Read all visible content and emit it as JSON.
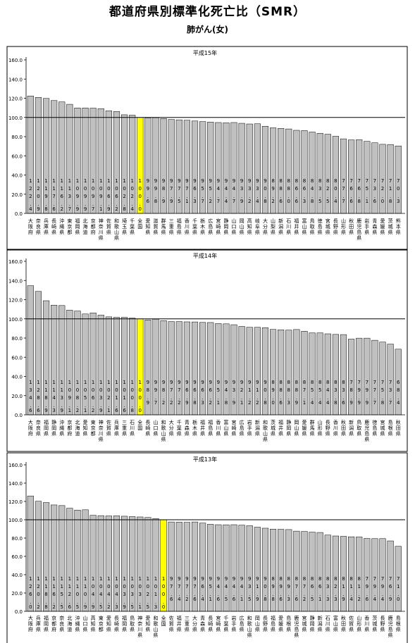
{
  "title": "都道府県別標準化死亡比（SMR）",
  "subtitle": "肺がん(女)",
  "colors": {
    "bar": "#c0c0c0",
    "highlight": "#ffff00",
    "stroke": "#000000"
  },
  "chart_data": [
    {
      "type": "bar",
      "title": "平成15年",
      "ylim": [
        0,
        160
      ],
      "yticks": [
        "0.0",
        "20.0",
        "40.0",
        "60.0",
        "80.0",
        "100.0",
        "120.0",
        "140.0",
        "160.0"
      ],
      "reference_line": 100,
      "highlight": "全国",
      "categories": [
        "大阪府",
        "奈良県",
        "兵庫県",
        "長崎県",
        "沖縄県",
        "東京都",
        "福岡県",
        "北海道",
        "京都府",
        "神奈川県",
        "佐賀県",
        "和歌山県",
        "埼玉県",
        "千葉県",
        "全国",
        "愛知県",
        "滋賀県",
        "群馬県",
        "三重県",
        "福島県",
        "香川県",
        "千葉県",
        "栃木県",
        "広島県",
        "宮崎県",
        "静岡県",
        "山口県",
        "岡山県",
        "高知県",
        "岐阜県",
        "大分県",
        "山梨県",
        "新潟県",
        "石川県",
        "福井県",
        "富山県",
        "鳥取県",
        "徳島県",
        "宮城県",
        "長野県",
        "山形県",
        "秋田県",
        "鹿児島県",
        "岩手県",
        "青森県",
        "愛媛県",
        "茨城県",
        "熊本県"
      ],
      "values": [
        122.4,
        120.9,
        119.8,
        117.6,
        116.2,
        113.7,
        109.9,
        109.9,
        109.7,
        109.1,
        106.9,
        106.2,
        102.8,
        102.4,
        100.0,
        99.6,
        99.8,
        98.9,
        97.9,
        97.5,
        97.1,
        96.3,
        95.7,
        95.2,
        94.7,
        94.4,
        94.7,
        93.9,
        93.2,
        93.4,
        90.8,
        89.2,
        88.6,
        88.0,
        86.6,
        86.3,
        84.8,
        83.5,
        82.5,
        80.4,
        77.7,
        76.6,
        76.8,
        75.1,
        73.6,
        72.0,
        71.8,
        70.3
      ],
      "value_labels": [
        "122.4",
        "120.9",
        "119.8",
        "117.6",
        "116.2",
        "113.7",
        "109.9",
        "109.9",
        "109.7",
        "109.1",
        "106.9",
        "106.2",
        "102.8",
        "102.4",
        "100.0",
        "99.6",
        "99.8",
        "98.9",
        "97.9",
        "97.5",
        "97.1",
        "96.3",
        "95.7",
        "95.2",
        "94.7",
        "94.4",
        "94.7",
        "93.9",
        "93.2",
        "93.4",
        "90.8",
        "89.2",
        "88.6",
        "88.0",
        "86.6",
        "86.3",
        "84.8",
        "83.5",
        "82.5",
        "80.4",
        "77.7",
        "76.6",
        "76.8",
        "75.1",
        "73.6",
        "72.0",
        "71.8",
        "70.3"
      ]
    },
    {
      "type": "bar",
      "title": "平成14年",
      "ylim": [
        0,
        160
      ],
      "yticks": [
        "0.0",
        "20.0",
        "40.0",
        "60.0",
        "80.0",
        "100.0",
        "120.0",
        "140.0",
        "160.0"
      ],
      "reference_line": 100,
      "highlight": "全国",
      "categories": [
        "大阪府",
        "奈良県",
        "福岡県",
        "静岡県",
        "沖縄県",
        "京都府",
        "北海道",
        "愛知県",
        "東京都",
        "神奈川県",
        "佐賀県",
        "兵庫県",
        "三重県",
        "石川県",
        "全国",
        "長崎県",
        "山口県",
        "和歌山県",
        "大分県",
        "千葉県",
        "青森県",
        "栃木県",
        "福井県",
        "福島県",
        "香川県",
        "富山県",
        "宮崎県",
        "広島県",
        "岩手県",
        "新潟県",
        "和歌山県",
        "茨城県",
        "福井県",
        "静岡県",
        "岡山県",
        "愛媛県",
        "群馬県",
        "山形県",
        "長野県",
        "香川県",
        "秋田県",
        "新潟県",
        "鳥取県",
        "鹿児島県",
        "徳島県",
        "宮城県",
        "島根県",
        "秋田県"
      ],
      "values": [
        134.6,
        128.6,
        118.9,
        114.3,
        113.9,
        109.1,
        108.2,
        105.1,
        106.2,
        103.9,
        102.1,
        101.6,
        101.6,
        100.8,
        100.0,
        98.9,
        99.7,
        98.2,
        97.2,
        97.2,
        96.9,
        96.8,
        96.3,
        96.2,
        95.1,
        94.8,
        93.9,
        92.1,
        91.2,
        91.2,
        90.8,
        89.0,
        88.6,
        88.3,
        88.9,
        87.1,
        85.4,
        85.4,
        84.4,
        83.8,
        83.6,
        78.9,
        79.9,
        79.9,
        77.7,
        75.8,
        73.7,
        68.4
      ],
      "value_labels": [
        "134.6",
        "128.6",
        "118.9",
        "114.3",
        "113.9",
        "109.1",
        "108.2",
        "105.1",
        "106.2",
        "103.9",
        "102.1",
        "101.6",
        "101.6",
        "100.8",
        "100.0",
        "98.9",
        "99.7",
        "98.2",
        "97.2",
        "97.2",
        "96.9",
        "96.8",
        "96.3",
        "96.2",
        "95.1",
        "94.8",
        "93.9",
        "92.1",
        "91.2",
        "91.2",
        "90.8",
        "89.0",
        "88.6",
        "88.3",
        "88.9",
        "87.1",
        "85.4",
        "85.4",
        "84.4",
        "83.8",
        "83.6",
        "78.9",
        "79.9",
        "79.9",
        "77.7",
        "75.8",
        "73.7",
        "68.4"
      ]
    },
    {
      "type": "bar",
      "title": "平成13年",
      "ylim": [
        0,
        160
      ],
      "yticks": [
        "0.0",
        "20.0",
        "40.0",
        "60.0",
        "80.0",
        "100.0",
        "120.0",
        "140.0",
        "160.0"
      ],
      "reference_line": 100,
      "highlight": "全国",
      "categories": [
        "大阪府",
        "兵庫県",
        "福岡県",
        "京都府",
        "奈良県",
        "北海道",
        "沖縄県",
        "山口県",
        "高知県",
        "東京都",
        "愛知県",
        "長崎県",
        "福岡県",
        "鳥取県",
        "神奈川県",
        "愛知県",
        "和歌山県",
        "全国",
        "佐賀県",
        "福井県",
        "三重県",
        "大分県",
        "青森県",
        "長崎県",
        "宮崎県",
        "千葉県",
        "岩手県",
        "広島県",
        "和歌山県",
        "岡山県",
        "長野県",
        "福島県",
        "愛媛県",
        "島根県",
        "鹿児島県",
        "宮城県",
        "静岡県",
        "新潟県",
        "石川県",
        "富山県",
        "秋田県",
        "佐賀県",
        "山形県",
        "香川県",
        "茨城県",
        "長野県",
        "鹿児島県",
        "島根県"
      ],
      "values": [
        126.0,
        120.2,
        118.8,
        116.2,
        115.5,
        112.6,
        110.5,
        110.9,
        104.9,
        104.5,
        104.2,
        104.3,
        103.9,
        103.5,
        103.1,
        102.5,
        101.3,
        100.0,
        97.6,
        97.4,
        97.2,
        97.6,
        96.4,
        95.1,
        94.6,
        94.5,
        94.6,
        94.1,
        93.5,
        91.9,
        90.8,
        89.8,
        89.6,
        89.3,
        87.6,
        87.2,
        86.5,
        86.1,
        83.3,
        82.3,
        81.9,
        81.4,
        81.2,
        79.6,
        79.4,
        79.4,
        76.9,
        71.0
      ],
      "value_labels": [
        "126.0",
        "120.2",
        "118.8",
        "116.2",
        "115.5",
        "112.6",
        "110.5",
        "110.9",
        "104.9",
        "104.5",
        "104.2",
        "104.3",
        "103.9",
        "103.5",
        "103.1",
        "102.5",
        "101.3",
        "100.0",
        "97.6",
        "97.4",
        "97.2",
        "97.6",
        "96.4",
        "95.1",
        "94.6",
        "94.5",
        "94.6",
        "94.1",
        "93.5",
        "91.9",
        "90.8",
        "89.8",
        "89.6",
        "89.3",
        "87.6",
        "87.2",
        "86.5",
        "86.1",
        "83.3",
        "82.3",
        "81.9",
        "81.4",
        "81.2",
        "79.6",
        "79.4",
        "79.4",
        "76.9",
        "71.0"
      ]
    }
  ]
}
